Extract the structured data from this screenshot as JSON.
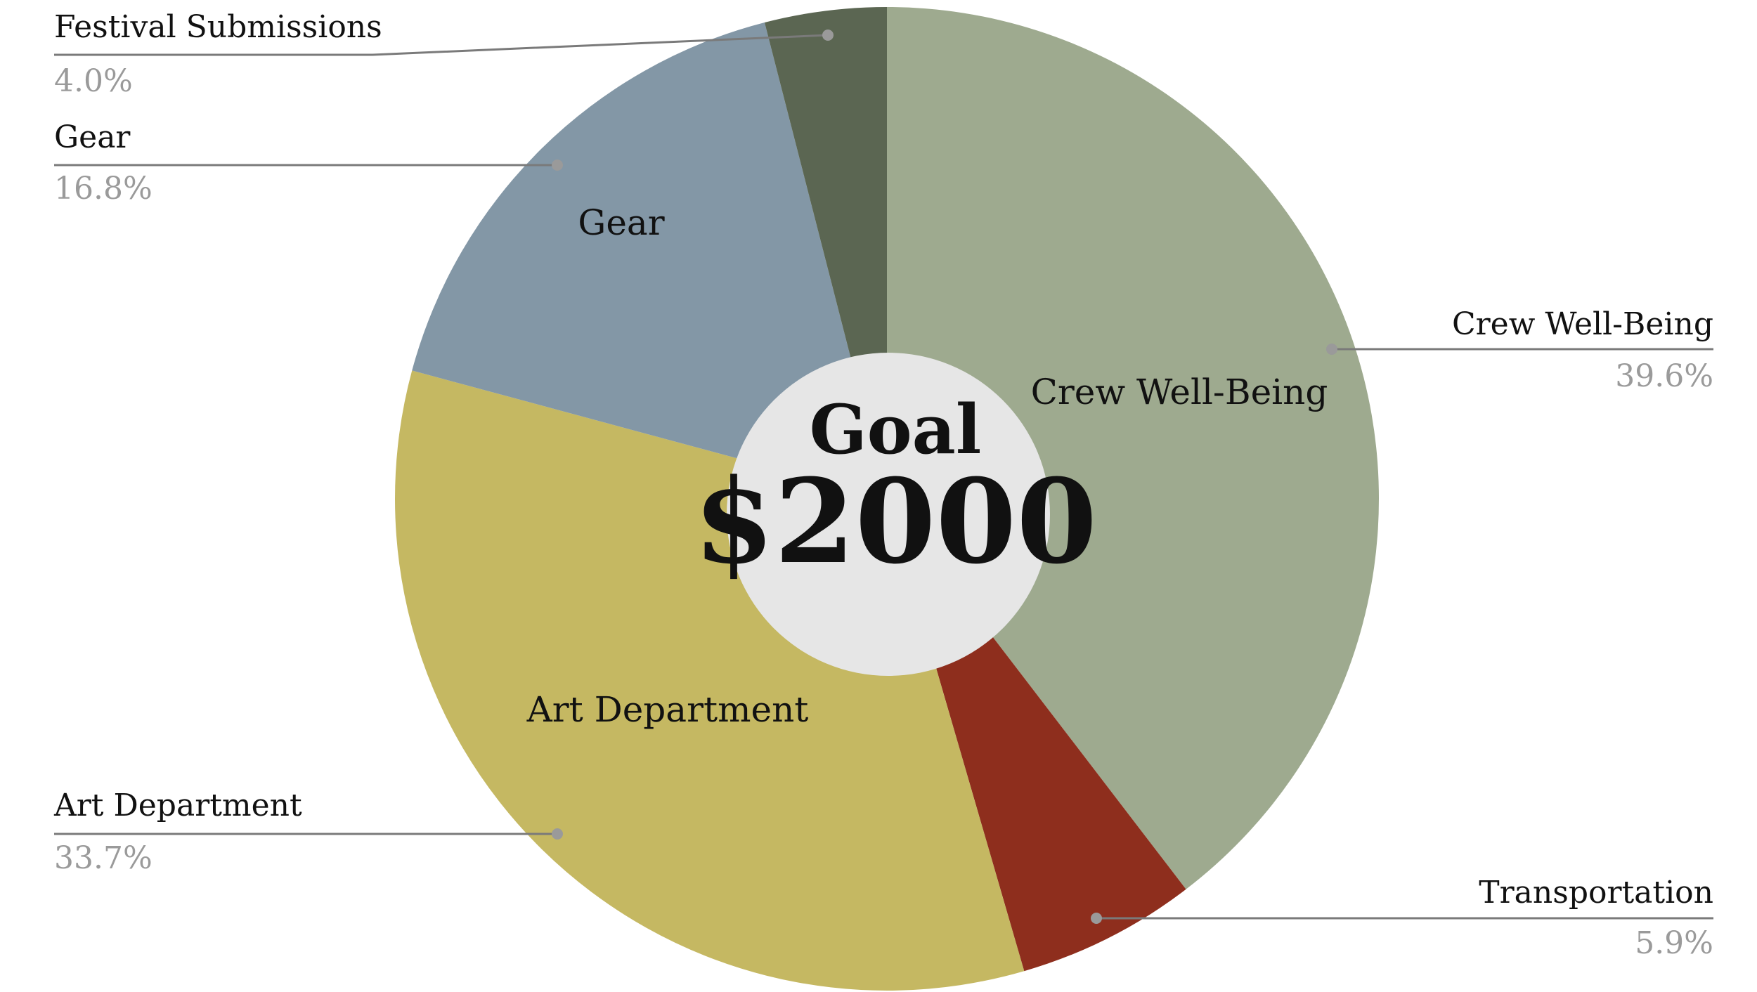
{
  "chart_data": {
    "type": "pie",
    "title": "",
    "center": {
      "line1": "Goal",
      "line2": "$2000"
    },
    "series": [
      {
        "name": "Crew Well-Being",
        "value": 39.6,
        "percent_label": "39.6%",
        "color": "#9eaa8f",
        "inside_label": "Crew Well-Being"
      },
      {
        "name": "Transportation",
        "value": 5.9,
        "percent_label": "5.9%",
        "color": "#8e2e1d",
        "inside_label": ""
      },
      {
        "name": "Art Department",
        "value": 33.7,
        "percent_label": "33.7%",
        "color": "#c5b862",
        "inside_label": "Art Department"
      },
      {
        "name": "Gear",
        "value": 16.8,
        "percent_label": "16.8%",
        "color": "#8397a6",
        "inside_label": "Gear"
      },
      {
        "name": "Festival Submissions",
        "value": 4.0,
        "percent_label": "4.0%",
        "color": "#5b6652",
        "inside_label": ""
      }
    ],
    "colors": {
      "center_fill": "#e6e6e6",
      "leader_line": "#7a7a7a",
      "leader_dot": "#9a9a9a"
    }
  }
}
